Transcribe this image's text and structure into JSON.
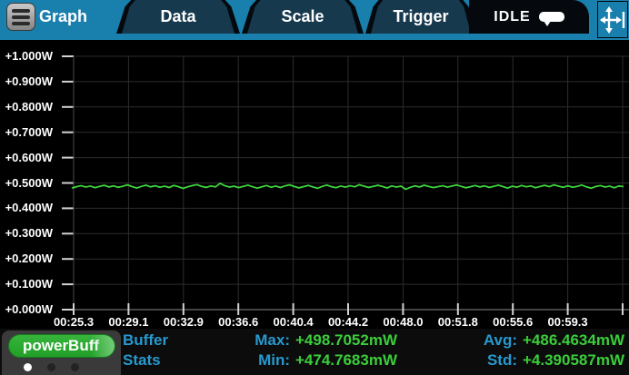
{
  "topbar": {
    "tabs": [
      {
        "label": "Graph",
        "active": true
      },
      {
        "label": "Data",
        "active": false
      },
      {
        "label": "Scale",
        "active": false
      },
      {
        "label": "Trigger",
        "active": false
      }
    ],
    "status": {
      "label": "IDLE",
      "icon": "comment-bubble-icon"
    },
    "menu_icon": "hamburger-menu-icon",
    "move_button_icon": "pan-arrows-icon",
    "accent_blue": "#197fad"
  },
  "chart_data": {
    "type": "line",
    "title": "",
    "xlabel": "",
    "ylabel": "",
    "y_tick_labels": [
      "+1.000W",
      "+0.900W",
      "+0.800W",
      "+0.700W",
      "+0.600W",
      "+0.500W",
      "+0.400W",
      "+0.300W",
      "+0.200W",
      "+0.100W",
      "+0.000W"
    ],
    "x_tick_labels": [
      "00:25.3",
      "00:29.1",
      "00:32.9",
      "00:36.6",
      "00:40.4",
      "00:44.2",
      "00:48.0",
      "00:51.8",
      "00:55.6",
      "00:59.3"
    ],
    "y_range_W": [
      0.0,
      1.0
    ],
    "grid": true,
    "legend": "none",
    "trace_color": "#3dd33d",
    "grid_color": "#2d2d2d",
    "tick_color": "#d2d2d2",
    "series": [
      {
        "name": "power",
        "unit": "mW",
        "values_mW": [
          480.1,
          485.3,
          489.2,
          483.7,
          487.9,
          481.4,
          486.6,
          490.8,
          484.2,
          488.5,
          482.9,
          487.1,
          492.3,
          485.6,
          479.8,
          486.4,
          491.2,
          484.7,
          488.9,
          483.1,
          487.6,
          481.9,
          490.4,
          485.2,
          478.6,
          484.9,
          489.7,
          493.1,
          486.8,
          482.3,
          488.1,
          484.5,
          498.7,
          489.3,
          483.8,
          487.2,
          481.6,
          486.9,
          491.5,
          485.1,
          479.4,
          484.6,
          489.8,
          483.2,
          487.7,
          482.1,
          488.4,
          492.6,
          486.1,
          480.7,
          485.8,
          490.2,
          484.3,
          478.9,
          486.3,
          491.7,
          485.4,
          481.2,
          487.8,
          483.5,
          489.1,
          484.8,
          492.9,
          487.3,
          482.6,
          486.7,
          490.6,
          485.9,
          480.3,
          488.2,
          483.9,
          487.4,
          474.8,
          482.7,
          488.7,
          484.1,
          490.9,
          486.2,
          481.8,
          485.7,
          489.4,
          483.4,
          487.9,
          492.1,
          486.5,
          480.9,
          485.3,
          490.1,
          484.4,
          488.6,
          482.4,
          486.8,
          491.3,
          485.5,
          479.6,
          487.1,
          483.6,
          489.9,
          484.9,
          488.3,
          481.5,
          486.1,
          490.7,
          485.2,
          492.4,
          487.6,
          482.8,
          488.8,
          483.3,
          486.4,
          491.9,
          484.6,
          479.2,
          485.9,
          489.5,
          483.7,
          487.3,
          481.1,
          488.1,
          485.6
        ]
      }
    ]
  },
  "bottombar": {
    "buffer_pill": "powerBuff",
    "page_dots": {
      "count": 3,
      "active_index": 0
    },
    "stats_title_line1": "Buffer",
    "stats_title_line2": "Stats",
    "stats": [
      {
        "label": "Max:",
        "value": "+498.7052mW"
      },
      {
        "label": "Min:",
        "value": "+474.7683mW"
      },
      {
        "label": "Avg:",
        "value": "+486.4634mW"
      },
      {
        "label": "Std:",
        "value": "+4.390587mW"
      }
    ],
    "label_color": "#2899cf",
    "value_color": "#3bcd3b"
  }
}
